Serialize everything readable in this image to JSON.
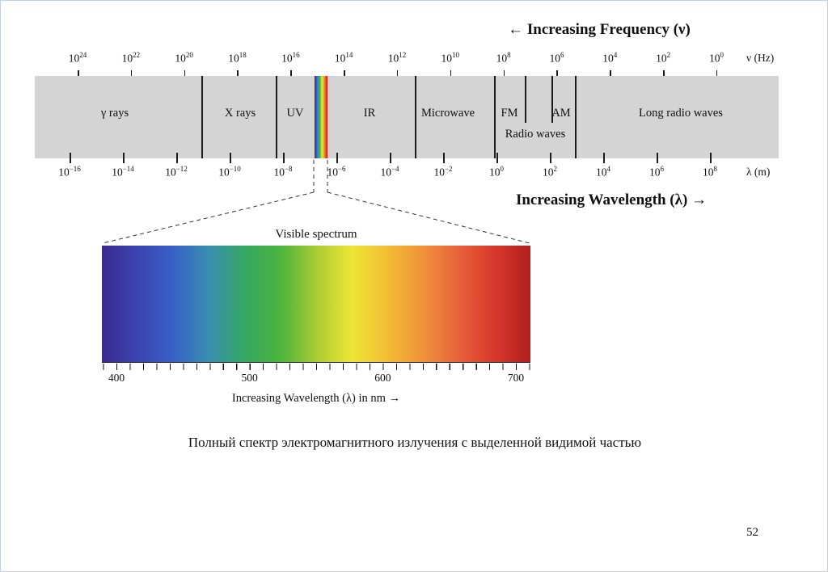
{
  "slide": {
    "caption": "Полный спектр электромагнитного излучения с выделенной видимой частью",
    "page_number": "52"
  },
  "figure": {
    "frequency": {
      "arrow_label": "← Increasing Frequency (ν)",
      "unit": "ν (Hz)",
      "base": "10",
      "exponents": [
        "24",
        "22",
        "20",
        "18",
        "16",
        "14",
        "12",
        "10",
        "8",
        "6",
        "4",
        "2",
        "0"
      ]
    },
    "wavelength": {
      "arrow_label": "Increasing Wavelength (λ) →",
      "unit": "λ (m)",
      "base": "10",
      "exponents": [
        "−16",
        "−14",
        "−12",
        "−10",
        "−8",
        "−6",
        "−4",
        "−2",
        "0",
        "2",
        "4",
        "6",
        "8"
      ]
    },
    "bands": {
      "gamma": "γ rays",
      "xray": "X rays",
      "uv": "UV",
      "ir": "IR",
      "microwave": "Microwave",
      "fm": "FM",
      "am": "AM",
      "long_radio": "Long radio waves",
      "radio": "Radio waves"
    },
    "visible": {
      "title": "Visible spectrum",
      "nm_ticks": [
        "400",
        "500",
        "600",
        "700"
      ],
      "nm_axis_label": "Increasing Wavelength (λ) in nm →",
      "gradient_colors": [
        "#3a2a8e",
        "#3b44b0",
        "#3761c6",
        "#3a8fae",
        "#35a862",
        "#4db43c",
        "#a8cc33",
        "#eee636",
        "#f2bc35",
        "#f0913a",
        "#e8603a",
        "#d8382c",
        "#b01f1f"
      ]
    }
  }
}
